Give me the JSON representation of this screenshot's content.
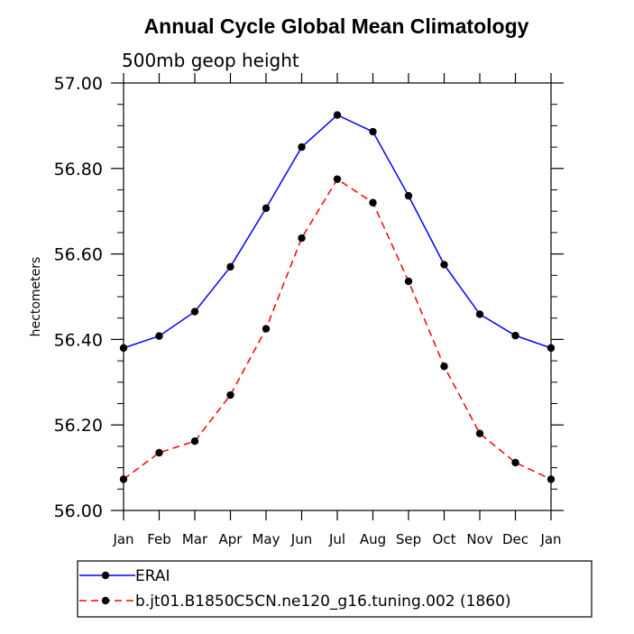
{
  "chart_data": {
    "type": "line",
    "title": "Annual Cycle Global Mean Climatology",
    "subtitle": "500mb geop height",
    "xlabel": "",
    "ylabel": "hectometers",
    "categories": [
      "Jan",
      "Feb",
      "Mar",
      "Apr",
      "May",
      "Jun",
      "Jul",
      "Aug",
      "Sep",
      "Oct",
      "Nov",
      "Dec",
      "Jan"
    ],
    "ylim": [
      56.0,
      57.0
    ],
    "yticks": [
      "56.00",
      "56.20",
      "56.40",
      "56.60",
      "56.80",
      "57.00"
    ],
    "grid": false,
    "legend_position": "bottom",
    "series": [
      {
        "name": "ERAI",
        "color": "#0000ff",
        "dash": "solid",
        "marker": "filled-circle",
        "values": [
          56.38,
          56.408,
          56.465,
          56.57,
          56.707,
          56.85,
          56.925,
          56.886,
          56.736,
          56.575,
          56.459,
          56.409,
          56.38
        ]
      },
      {
        "name": "b.jt01.B1850C5CN.ne120_g16.tuning.002 (1860)",
        "color": "#ff0000",
        "dash": "dashed",
        "marker": "filled-circle",
        "values": [
          56.073,
          56.135,
          56.162,
          56.27,
          56.425,
          56.637,
          56.775,
          56.72,
          56.536,
          56.337,
          56.18,
          56.112,
          56.073
        ]
      }
    ]
  }
}
